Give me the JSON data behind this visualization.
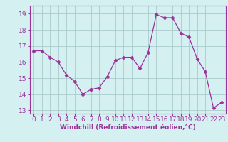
{
  "x": [
    0,
    1,
    2,
    3,
    4,
    5,
    6,
    7,
    8,
    9,
    10,
    11,
    12,
    13,
    14,
    15,
    16,
    17,
    18,
    19,
    20,
    21,
    22,
    23
  ],
  "y": [
    16.7,
    16.7,
    16.3,
    16.0,
    15.2,
    14.8,
    14.0,
    14.3,
    14.4,
    15.1,
    16.1,
    16.3,
    16.3,
    15.6,
    16.6,
    18.95,
    18.75,
    18.75,
    17.8,
    17.55,
    16.2,
    15.4,
    13.15,
    13.5
  ],
  "line_color": "#993399",
  "marker": "D",
  "marker_size": 2.5,
  "bg_color": "#d4f0f0",
  "grid_color": "#aacccc",
  "xlabel": "Windchill (Refroidissement éolien,°C)",
  "xlim": [
    -0.5,
    23.5
  ],
  "ylim": [
    12.8,
    19.5
  ],
  "yticks": [
    13,
    14,
    15,
    16,
    17,
    18,
    19
  ],
  "xticks": [
    0,
    1,
    2,
    3,
    4,
    5,
    6,
    7,
    8,
    9,
    10,
    11,
    12,
    13,
    14,
    15,
    16,
    17,
    18,
    19,
    20,
    21,
    22,
    23
  ],
  "xlabel_fontsize": 6.5,
  "tick_fontsize": 6.5,
  "spine_color": "#993399",
  "axis_bg": "#d4f0f0"
}
